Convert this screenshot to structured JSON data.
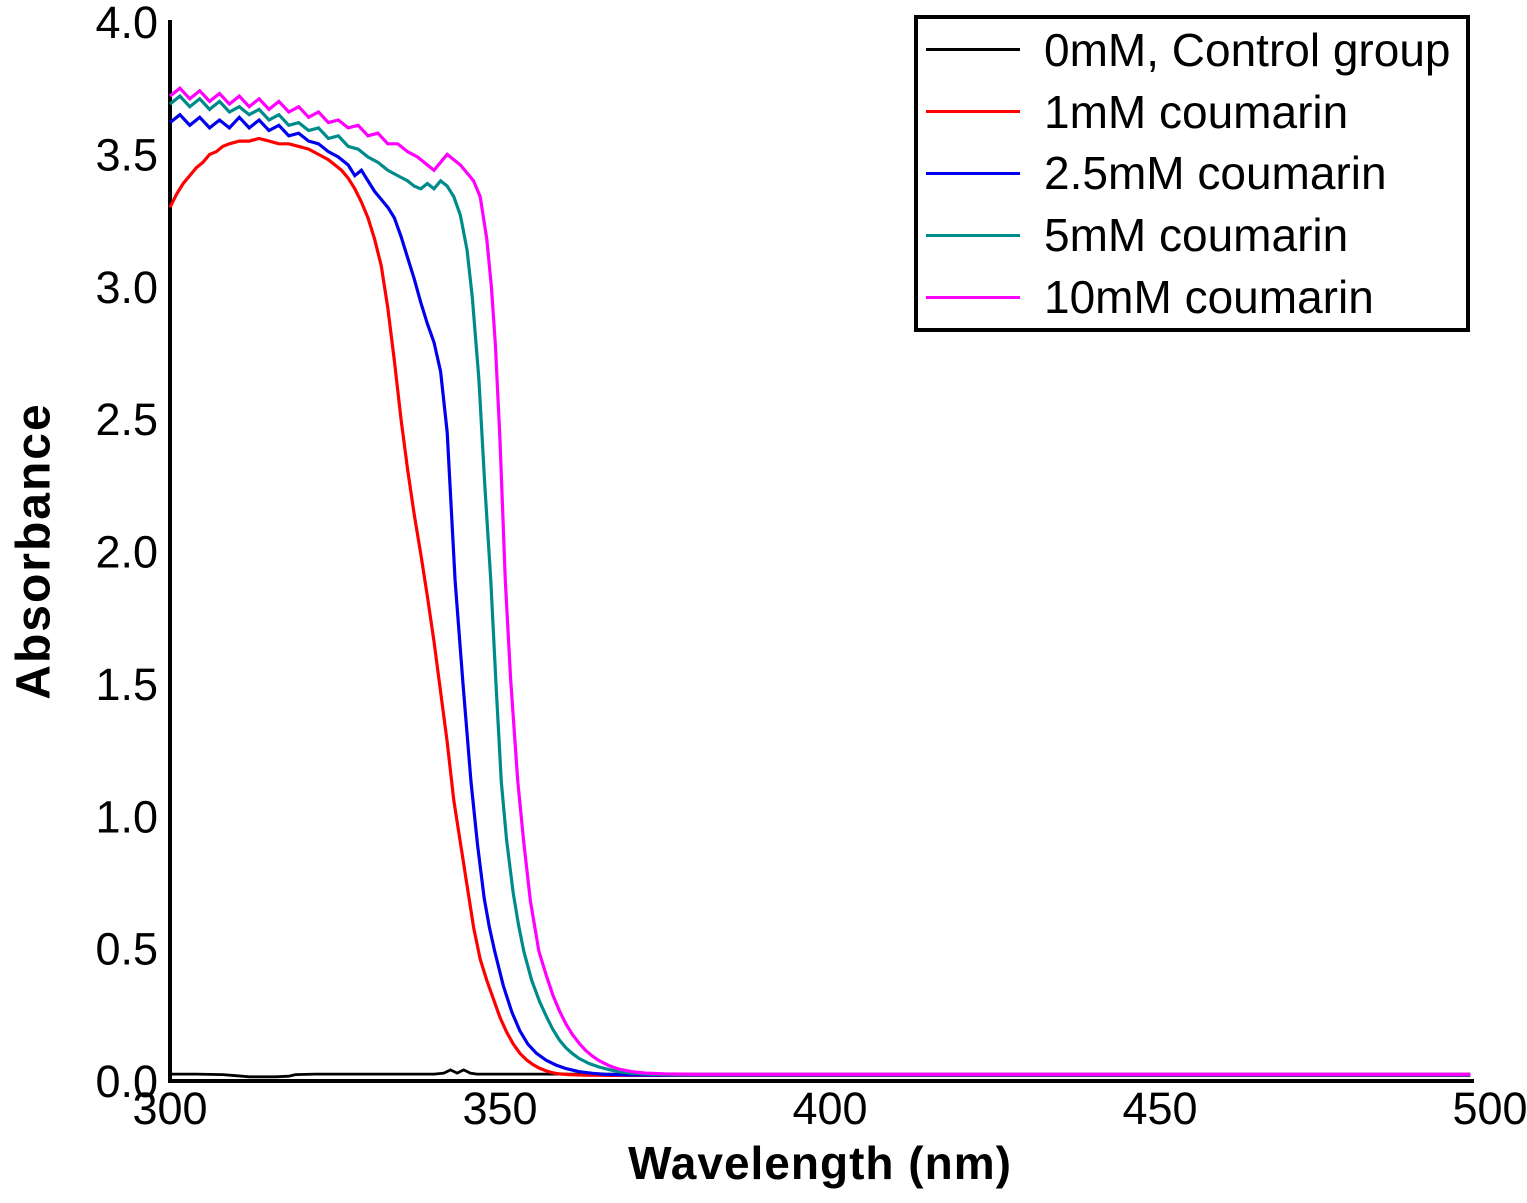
{
  "chart_data": {
    "type": "line",
    "title": "",
    "xlabel": "Wavelength (nm)",
    "ylabel": "Absorbance",
    "xlim": [
      300,
      500
    ],
    "ylim": [
      0.0,
      4.0
    ],
    "grid": false,
    "legend_position": "top-right",
    "xticks": {
      "values": [
        300,
        350,
        400,
        450,
        500
      ],
      "labels": [
        "300",
        "350",
        "400",
        "450",
        "500"
      ]
    },
    "yticks": {
      "values": [
        0,
        0.5,
        1,
        1.5,
        2,
        2.5,
        3,
        3.5,
        4
      ],
      "labels": [
        "0.0",
        "0.5",
        "1.0",
        "1.5",
        "2.0",
        "2.5",
        "3.0",
        "3.5",
        "4.0"
      ]
    },
    "series": [
      {
        "id": "control",
        "name": "0mM, Control group",
        "color": "#000000",
        "width": 2.8,
        "points": [
          [
            300,
            0.026
          ],
          [
            304,
            0.026
          ],
          [
            308,
            0.024
          ],
          [
            310,
            0.02
          ],
          [
            312,
            0.016
          ],
          [
            314,
            0.016
          ],
          [
            316,
            0.016
          ],
          [
            318,
            0.018
          ],
          [
            319,
            0.024
          ],
          [
            322,
            0.026
          ],
          [
            328,
            0.026
          ],
          [
            334,
            0.026
          ],
          [
            340,
            0.026
          ],
          [
            341.5,
            0.03
          ],
          [
            342.5,
            0.042
          ],
          [
            343.5,
            0.03
          ],
          [
            344.5,
            0.042
          ],
          [
            345.5,
            0.03
          ],
          [
            346.5,
            0.026
          ],
          [
            352,
            0.026
          ],
          [
            360,
            0.026
          ],
          [
            380,
            0.026
          ],
          [
            410,
            0.026
          ],
          [
            440,
            0.026
          ],
          [
            470,
            0.026
          ],
          [
            497,
            0.026
          ]
        ]
      },
      {
        "id": "c1",
        "name": "1mM coumarin",
        "color": "#ff0000",
        "width": 3.2,
        "points": [
          [
            300,
            3.3
          ],
          [
            301,
            3.35
          ],
          [
            302,
            3.39
          ],
          [
            303,
            3.42
          ],
          [
            304,
            3.45
          ],
          [
            305,
            3.47
          ],
          [
            306,
            3.5
          ],
          [
            307,
            3.51
          ],
          [
            308,
            3.53
          ],
          [
            309,
            3.54
          ],
          [
            310.5,
            3.55
          ],
          [
            312,
            3.55
          ],
          [
            313.5,
            3.56
          ],
          [
            315,
            3.55
          ],
          [
            316.5,
            3.54
          ],
          [
            318,
            3.54
          ],
          [
            319.5,
            3.53
          ],
          [
            321,
            3.52
          ],
          [
            322.5,
            3.5
          ],
          [
            324,
            3.48
          ],
          [
            325,
            3.46
          ],
          [
            326,
            3.44
          ],
          [
            327,
            3.41
          ],
          [
            328,
            3.37
          ],
          [
            329,
            3.32
          ],
          [
            330,
            3.26
          ],
          [
            331,
            3.18
          ],
          [
            332,
            3.08
          ],
          [
            333,
            2.92
          ],
          [
            334,
            2.72
          ],
          [
            335,
            2.5
          ],
          [
            336,
            2.31
          ],
          [
            337,
            2.14
          ],
          [
            338,
            1.99
          ],
          [
            339,
            1.83
          ],
          [
            340,
            1.66
          ],
          [
            341,
            1.47
          ],
          [
            342,
            1.28
          ],
          [
            343,
            1.06
          ],
          [
            344,
            0.9
          ],
          [
            345,
            0.74
          ],
          [
            346,
            0.58
          ],
          [
            347,
            0.46
          ],
          [
            348,
            0.38
          ],
          [
            349,
            0.31
          ],
          [
            350,
            0.24
          ],
          [
            351,
            0.185
          ],
          [
            352,
            0.14
          ],
          [
            353,
            0.105
          ],
          [
            354,
            0.08
          ],
          [
            355,
            0.062
          ],
          [
            356,
            0.048
          ],
          [
            357,
            0.038
          ],
          [
            358,
            0.031
          ],
          [
            359,
            0.027
          ],
          [
            360.5,
            0.024
          ],
          [
            363,
            0.022
          ],
          [
            367,
            0.021
          ],
          [
            372,
            0.021
          ],
          [
            380,
            0.021
          ],
          [
            400,
            0.021
          ],
          [
            425,
            0.021
          ],
          [
            450,
            0.021
          ],
          [
            475,
            0.021
          ],
          [
            497,
            0.021
          ]
        ]
      },
      {
        "id": "c2_5",
        "name": "2.5mM coumarin",
        "color": "#0000ee",
        "width": 3.2,
        "points": [
          [
            300,
            3.62
          ],
          [
            301.5,
            3.65
          ],
          [
            303,
            3.61
          ],
          [
            304.5,
            3.64
          ],
          [
            306,
            3.6
          ],
          [
            307.5,
            3.63
          ],
          [
            309,
            3.6
          ],
          [
            310.5,
            3.64
          ],
          [
            312,
            3.6
          ],
          [
            313.5,
            3.63
          ],
          [
            315,
            3.59
          ],
          [
            316.5,
            3.61
          ],
          [
            318,
            3.57
          ],
          [
            319.5,
            3.58
          ],
          [
            321,
            3.55
          ],
          [
            322.5,
            3.54
          ],
          [
            324,
            3.51
          ],
          [
            325.5,
            3.49
          ],
          [
            327,
            3.46
          ],
          [
            328,
            3.42
          ],
          [
            329,
            3.44
          ],
          [
            330,
            3.4
          ],
          [
            331,
            3.36
          ],
          [
            332,
            3.33
          ],
          [
            333,
            3.3
          ],
          [
            334,
            3.26
          ],
          [
            335,
            3.19
          ],
          [
            336,
            3.11
          ],
          [
            337,
            3.03
          ],
          [
            338,
            2.94
          ],
          [
            339,
            2.86
          ],
          [
            340,
            2.79
          ],
          [
            341,
            2.68
          ],
          [
            342,
            2.45
          ],
          [
            343.2,
            1.89
          ],
          [
            344.4,
            1.5
          ],
          [
            345.6,
            1.13
          ],
          [
            346.6,
            0.89
          ],
          [
            347.6,
            0.69
          ],
          [
            348.4,
            0.58
          ],
          [
            349.2,
            0.49
          ],
          [
            350.5,
            0.36
          ],
          [
            351.8,
            0.26
          ],
          [
            353,
            0.19
          ],
          [
            354.2,
            0.14
          ],
          [
            355.5,
            0.105
          ],
          [
            357,
            0.078
          ],
          [
            358.5,
            0.06
          ],
          [
            360,
            0.047
          ],
          [
            362,
            0.035
          ],
          [
            364,
            0.029
          ],
          [
            366,
            0.025
          ],
          [
            369,
            0.023
          ],
          [
            373,
            0.022
          ],
          [
            380,
            0.022
          ],
          [
            400,
            0.022
          ],
          [
            425,
            0.022
          ],
          [
            450,
            0.022
          ],
          [
            475,
            0.022
          ],
          [
            497,
            0.022
          ]
        ]
      },
      {
        "id": "c5",
        "name": "5mM coumarin",
        "color": "#008b8b",
        "width": 3.2,
        "points": [
          [
            300,
            3.69
          ],
          [
            301.5,
            3.72
          ],
          [
            303,
            3.68
          ],
          [
            304.5,
            3.71
          ],
          [
            306,
            3.67
          ],
          [
            307.5,
            3.7
          ],
          [
            309,
            3.66
          ],
          [
            310.5,
            3.68
          ],
          [
            312,
            3.65
          ],
          [
            313.5,
            3.67
          ],
          [
            315,
            3.63
          ],
          [
            316.5,
            3.65
          ],
          [
            318,
            3.61
          ],
          [
            319.5,
            3.62
          ],
          [
            321,
            3.59
          ],
          [
            322.5,
            3.6
          ],
          [
            324,
            3.56
          ],
          [
            325.5,
            3.57
          ],
          [
            327,
            3.53
          ],
          [
            328.5,
            3.52
          ],
          [
            330,
            3.49
          ],
          [
            331.5,
            3.47
          ],
          [
            333,
            3.44
          ],
          [
            334.5,
            3.42
          ],
          [
            336,
            3.4
          ],
          [
            337,
            3.38
          ],
          [
            338,
            3.37
          ],
          [
            339,
            3.39
          ],
          [
            340,
            3.37
          ],
          [
            341,
            3.4
          ],
          [
            342,
            3.38
          ],
          [
            343,
            3.34
          ],
          [
            344,
            3.27
          ],
          [
            345,
            3.14
          ],
          [
            345.8,
            2.96
          ],
          [
            346.8,
            2.65
          ],
          [
            347.7,
            2.25
          ],
          [
            348.6,
            1.89
          ],
          [
            349.4,
            1.5
          ],
          [
            350.2,
            1.13
          ],
          [
            351,
            0.91
          ],
          [
            352,
            0.71
          ],
          [
            352.8,
            0.59
          ],
          [
            353.6,
            0.49
          ],
          [
            354.8,
            0.38
          ],
          [
            356,
            0.3
          ],
          [
            357,
            0.245
          ],
          [
            358,
            0.195
          ],
          [
            359,
            0.155
          ],
          [
            360,
            0.125
          ],
          [
            361,
            0.103
          ],
          [
            362,
            0.085
          ],
          [
            363.5,
            0.066
          ],
          [
            365,
            0.053
          ],
          [
            366.5,
            0.043
          ],
          [
            368,
            0.035
          ],
          [
            370,
            0.029
          ],
          [
            373,
            0.025
          ],
          [
            377,
            0.023
          ],
          [
            385,
            0.023
          ],
          [
            400,
            0.023
          ],
          [
            425,
            0.023
          ],
          [
            450,
            0.023
          ],
          [
            475,
            0.023
          ],
          [
            497,
            0.023
          ]
        ]
      },
      {
        "id": "c10",
        "name": "10mM coumarin",
        "color": "#ff00ff",
        "width": 3.2,
        "points": [
          [
            300,
            3.72
          ],
          [
            301.5,
            3.75
          ],
          [
            303,
            3.71
          ],
          [
            304.5,
            3.74
          ],
          [
            306,
            3.7
          ],
          [
            307.5,
            3.73
          ],
          [
            309,
            3.69
          ],
          [
            310.5,
            3.72
          ],
          [
            312,
            3.68
          ],
          [
            313.5,
            3.71
          ],
          [
            315,
            3.67
          ],
          [
            316.5,
            3.7
          ],
          [
            318,
            3.66
          ],
          [
            319.5,
            3.68
          ],
          [
            321,
            3.64
          ],
          [
            322.5,
            3.66
          ],
          [
            324,
            3.62
          ],
          [
            325.5,
            3.63
          ],
          [
            327,
            3.6
          ],
          [
            328.5,
            3.61
          ],
          [
            330,
            3.57
          ],
          [
            331.5,
            3.58
          ],
          [
            333,
            3.54
          ],
          [
            334.5,
            3.54
          ],
          [
            336,
            3.51
          ],
          [
            337.5,
            3.49
          ],
          [
            339,
            3.46
          ],
          [
            340,
            3.44
          ],
          [
            341,
            3.47
          ],
          [
            342,
            3.5
          ],
          [
            343,
            3.48
          ],
          [
            344,
            3.46
          ],
          [
            345,
            3.43
          ],
          [
            346,
            3.4
          ],
          [
            347,
            3.34
          ],
          [
            348,
            3.18
          ],
          [
            348.7,
            3.0
          ],
          [
            349.3,
            2.78
          ],
          [
            350,
            2.42
          ],
          [
            350.8,
            1.89
          ],
          [
            351.6,
            1.52
          ],
          [
            352.7,
            1.13
          ],
          [
            353.6,
            0.9
          ],
          [
            354.6,
            0.68
          ],
          [
            355.9,
            0.49
          ],
          [
            357,
            0.4
          ],
          [
            358,
            0.325
          ],
          [
            359,
            0.265
          ],
          [
            360,
            0.215
          ],
          [
            361,
            0.175
          ],
          [
            362,
            0.142
          ],
          [
            363,
            0.115
          ],
          [
            364,
            0.094
          ],
          [
            365,
            0.077
          ],
          [
            366.5,
            0.058
          ],
          [
            368,
            0.045
          ],
          [
            370,
            0.035
          ],
          [
            372,
            0.03
          ],
          [
            375,
            0.027
          ],
          [
            380,
            0.025
          ],
          [
            390,
            0.025
          ],
          [
            410,
            0.025
          ],
          [
            435,
            0.025
          ],
          [
            460,
            0.025
          ],
          [
            480,
            0.025
          ],
          [
            497,
            0.025
          ]
        ]
      }
    ]
  },
  "axis_color": "#000000"
}
